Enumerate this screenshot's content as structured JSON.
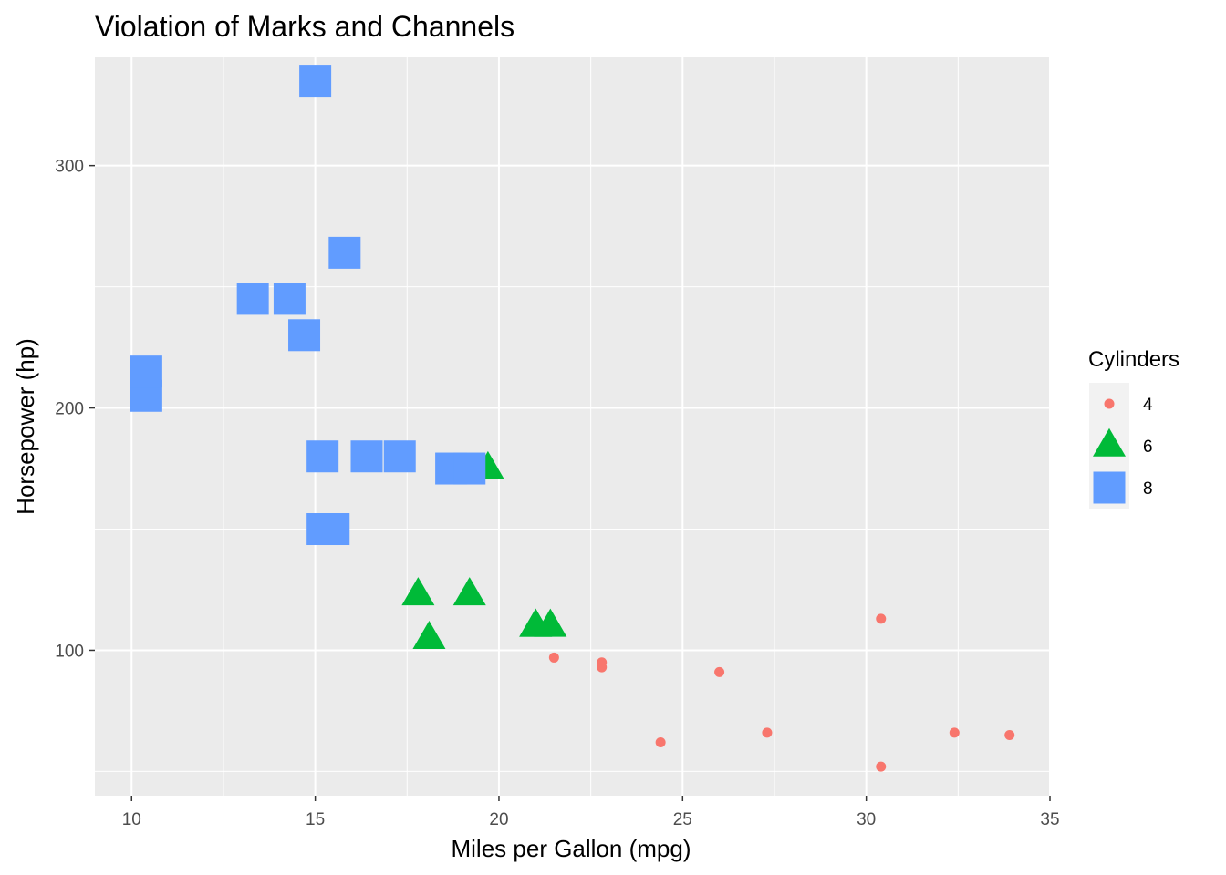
{
  "chart_data": {
    "type": "scatter",
    "title": "Violation of Marks and Channels",
    "xlabel": "Miles per Gallon (mpg)",
    "ylabel": "Horsepower (hp)",
    "xlim": [
      9.0,
      35.0
    ],
    "ylim": [
      40.0,
      345.0
    ],
    "x_ticks": [
      10,
      15,
      20,
      25,
      30,
      35
    ],
    "y_ticks": [
      100,
      200,
      300
    ],
    "grid": true,
    "legend": {
      "title": "Cylinders",
      "position": "right"
    },
    "series": [
      {
        "name": "4",
        "shape": "circle",
        "color": "#F8766D",
        "points": [
          {
            "x": 22.8,
            "y": 93
          },
          {
            "x": 24.4,
            "y": 62
          },
          {
            "x": 22.8,
            "y": 95
          },
          {
            "x": 32.4,
            "y": 66
          },
          {
            "x": 30.4,
            "y": 52
          },
          {
            "x": 33.9,
            "y": 65
          },
          {
            "x": 21.5,
            "y": 97
          },
          {
            "x": 27.3,
            "y": 66
          },
          {
            "x": 26.0,
            "y": 91
          },
          {
            "x": 30.4,
            "y": 113
          },
          {
            "x": 21.4,
            "y": 109
          }
        ]
      },
      {
        "name": "6",
        "shape": "triangle",
        "color": "#00BA38",
        "points": [
          {
            "x": 21.0,
            "y": 110
          },
          {
            "x": 21.0,
            "y": 110
          },
          {
            "x": 21.4,
            "y": 110
          },
          {
            "x": 18.1,
            "y": 105
          },
          {
            "x": 19.2,
            "y": 123
          },
          {
            "x": 17.8,
            "y": 123
          },
          {
            "x": 19.7,
            "y": 175
          }
        ]
      },
      {
        "name": "8",
        "shape": "square",
        "color": "#619CFF",
        "points": [
          {
            "x": 18.7,
            "y": 175
          },
          {
            "x": 14.3,
            "y": 245
          },
          {
            "x": 16.4,
            "y": 180
          },
          {
            "x": 17.3,
            "y": 180
          },
          {
            "x": 15.2,
            "y": 180
          },
          {
            "x": 10.4,
            "y": 205
          },
          {
            "x": 10.4,
            "y": 215
          },
          {
            "x": 14.7,
            "y": 230
          },
          {
            "x": 15.5,
            "y": 150
          },
          {
            "x": 15.2,
            "y": 150
          },
          {
            "x": 13.3,
            "y": 245
          },
          {
            "x": 19.2,
            "y": 175
          },
          {
            "x": 15.8,
            "y": 264
          },
          {
            "x": 15.0,
            "y": 335
          }
        ]
      }
    ]
  }
}
